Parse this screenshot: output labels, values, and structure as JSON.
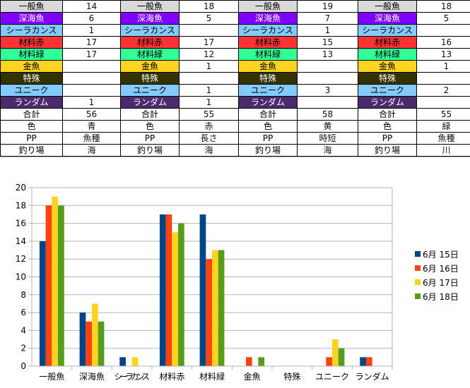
{
  "table": {
    "row_labels": [
      "一般魚",
      "深海魚",
      "シーラカンス",
      "材料赤",
      "材料緑",
      "金魚",
      "特殊",
      "ユニーク",
      "ランダム",
      "合計",
      "色",
      "PP",
      "釣り場"
    ],
    "row_colors": [
      "#d9d9d9",
      "#8000ff",
      "#83caff",
      "#ff3333",
      "#33ff99",
      "#ffd320",
      "#333300",
      "#83caff",
      "#4b2a6e",
      "#ffffff",
      "#ffffff",
      "#ffffff",
      "#ffffff"
    ],
    "row_text_colors": [
      "#000",
      "#fff",
      "#000",
      "#000",
      "#000",
      "#000",
      "#fff",
      "#000",
      "#fff",
      "#000",
      "#000",
      "#000",
      "#000"
    ],
    "groups": [
      {
        "values": [
          "14",
          "6",
          "1",
          "17",
          "17",
          "",
          "",
          "",
          "1",
          "56",
          "青",
          "魚種",
          "海"
        ]
      },
      {
        "values": [
          "18",
          "5",
          "",
          "17",
          "12",
          "1",
          "",
          "1",
          "1",
          "55",
          "赤",
          "長さ",
          "海"
        ]
      },
      {
        "values": [
          "19",
          "7",
          "1",
          "15",
          "13",
          "",
          "",
          "3",
          "",
          "58",
          "黄",
          "時短",
          "海"
        ]
      },
      {
        "values": [
          "18",
          "5",
          "",
          "16",
          "13",
          "1",
          "",
          "2",
          "",
          "55",
          "緑",
          "魚種",
          "川"
        ]
      }
    ]
  },
  "chart_data": {
    "type": "bar",
    "categories": [
      "一般魚",
      "深海魚",
      "シーラカンス",
      "材料赤",
      "材料緑",
      "金魚",
      "特殊",
      "ユニーク",
      "ランダム"
    ],
    "series": [
      {
        "name": "6月 15日",
        "color": "#004586",
        "values": [
          14,
          6,
          1,
          17,
          17,
          0,
          0,
          0,
          1
        ]
      },
      {
        "name": "6月 16日",
        "color": "#ff420e",
        "values": [
          18,
          5,
          0,
          17,
          12,
          1,
          0,
          1,
          1
        ]
      },
      {
        "name": "6月 17日",
        "color": "#ffd320",
        "values": [
          19,
          7,
          1,
          15,
          13,
          0,
          0,
          3,
          0
        ]
      },
      {
        "name": "6月 18日",
        "color": "#579d1c",
        "values": [
          18,
          5,
          0,
          16,
          13,
          1,
          0,
          2,
          0
        ]
      }
    ],
    "ylim": [
      0,
      20
    ],
    "yticks": [
      "0",
      "2",
      "4",
      "6",
      "8",
      "10",
      "12",
      "14",
      "16",
      "18",
      "20"
    ],
    "grid": true,
    "legend": "right"
  }
}
